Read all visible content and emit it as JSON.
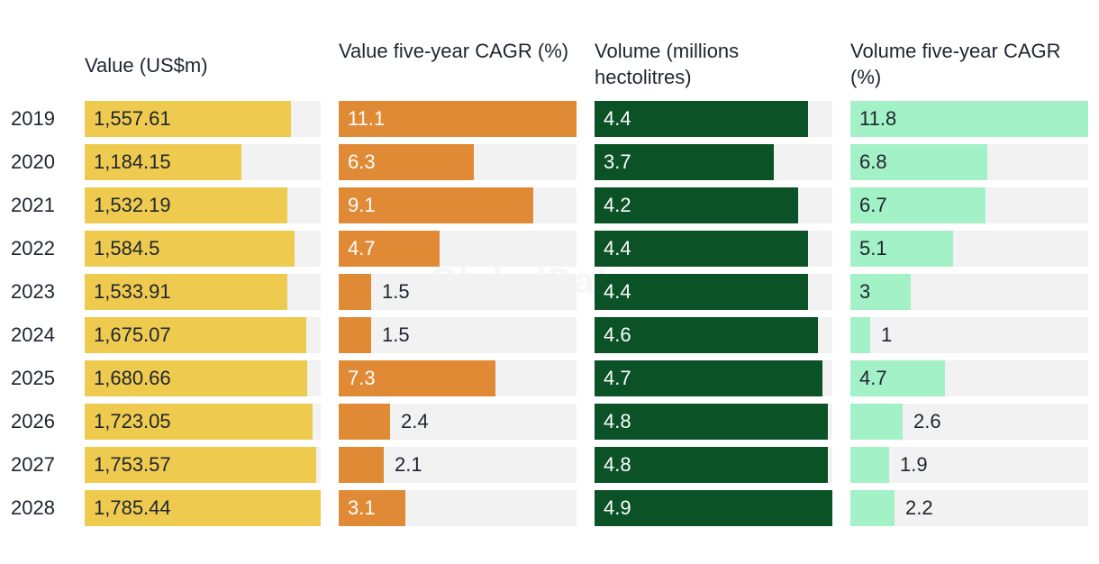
{
  "chart_data": {
    "type": "table",
    "watermark": "GlobalData",
    "categories": [
      "2019",
      "2020",
      "2021",
      "2022",
      "2023",
      "2024",
      "2025",
      "2026",
      "2027",
      "2028"
    ],
    "series": [
      {
        "name": "Value (US$m)",
        "color": "#EECB4F",
        "text_color": "#1f2430",
        "max": 1785.44,
        "values": [
          1557.61,
          1184.15,
          1532.19,
          1584.5,
          1533.91,
          1675.07,
          1680.66,
          1723.05,
          1753.57,
          1785.44
        ],
        "labels": [
          "1,557.61",
          "1,184.15",
          "1,532.19",
          "1,584.5",
          "1,533.91",
          "1,675.07",
          "1,680.66",
          "1,723.05",
          "1,753.57",
          "1,785.44"
        ]
      },
      {
        "name": "Value five-year CAGR (%)",
        "color": "#E08A35",
        "text_color": "#ffffff",
        "max": 11.1,
        "values": [
          11.1,
          6.3,
          9.1,
          4.7,
          1.5,
          1.5,
          7.3,
          2.4,
          2.1,
          3.1
        ],
        "labels": [
          "11.1",
          "6.3",
          "9.1",
          "4.7",
          "1.5",
          "1.5",
          "7.3",
          "2.4",
          "2.1",
          "3.1"
        ]
      },
      {
        "name": "Volume (millions hectolitres)",
        "color": "#0B5227",
        "text_color": "#ffffff",
        "max": 4.9,
        "values": [
          4.4,
          3.7,
          4.2,
          4.4,
          4.4,
          4.6,
          4.7,
          4.8,
          4.8,
          4.9
        ],
        "labels": [
          "4.4",
          "3.7",
          "4.2",
          "4.4",
          "4.4",
          "4.6",
          "4.7",
          "4.8",
          "4.8",
          "4.9"
        ]
      },
      {
        "name": "Volume five-year CAGR (%)",
        "color": "#A3F1C6",
        "text_color": "#1f2430",
        "max": 11.8,
        "values": [
          11.8,
          6.8,
          6.7,
          5.1,
          3,
          1,
          4.7,
          2.6,
          1.9,
          2.2
        ],
        "labels": [
          "11.8",
          "6.8",
          "6.7",
          "5.1",
          "3",
          "1",
          "4.7",
          "2.6",
          "1.9",
          "2.2"
        ]
      }
    ]
  }
}
